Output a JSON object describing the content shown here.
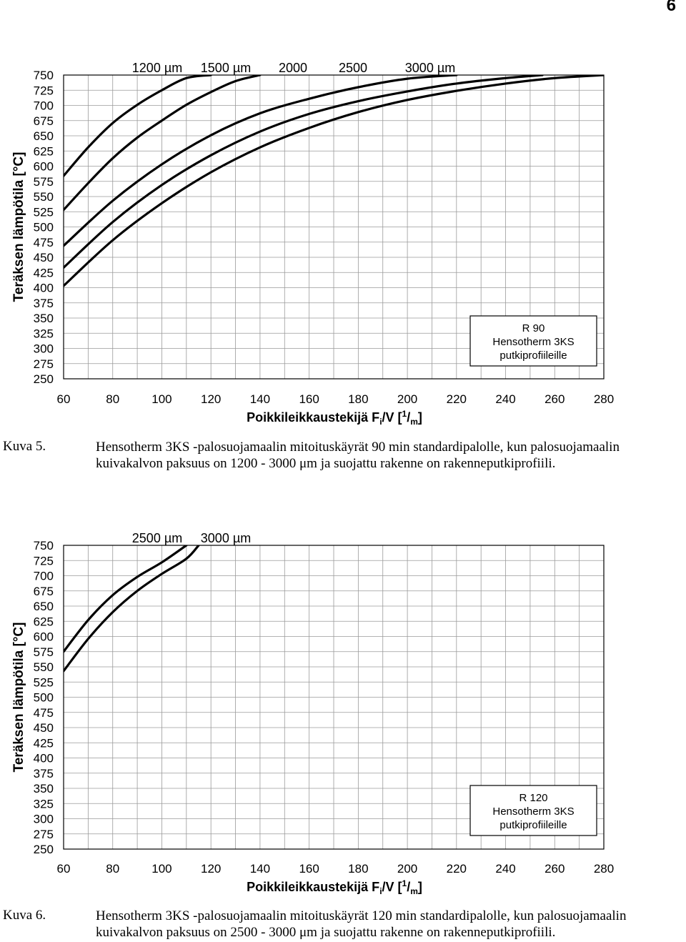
{
  "page_number": "6",
  "figures": [
    {
      "label": "Kuva 5.",
      "caption": "Hensotherm 3KS -palosuojamaalin mitoituskäyrät 90 min standardipalolle, kun palosuojamaalin kuivakalvon paksuus on 1200 - 3000 μm ja suojattu rakenne on rakenneputkiprofiili."
    },
    {
      "label": "Kuva 6.",
      "caption": "Hensotherm 3KS -palosuojamaalin mitoituskäyrät 120 min standardipalolle, kun palosuojamaalin kuivakalvon paksuus on 2500 - 3000 μm ja suojattu rakenne on rakenneputkiprofiili."
    }
  ],
  "chart_data": [
    {
      "type": "line",
      "xlabel": "Poikkileikkaustekijä Fi/V [1/m]",
      "ylabel": "Teräksen lämpötila [°C]",
      "xlim": [
        60,
        280
      ],
      "ylim": [
        250,
        750
      ],
      "xticks": [
        60,
        80,
        100,
        120,
        140,
        160,
        180,
        200,
        220,
        240,
        260,
        280
      ],
      "yticks": [
        250,
        275,
        300,
        325,
        350,
        375,
        400,
        425,
        450,
        475,
        500,
        525,
        550,
        575,
        600,
        625,
        650,
        675,
        700,
        725,
        750
      ],
      "grid": true,
      "legend_box": [
        "R 90",
        "Hensotherm 3KS",
        "putkiprofiileille"
      ],
      "series": [
        {
          "name": "1200 µm",
          "x": [
            60,
            70,
            80,
            90,
            100,
            110,
            120
          ],
          "y": [
            584,
            631,
            671,
            701,
            725,
            745,
            750
          ]
        },
        {
          "name": "1500 µm",
          "x": [
            60,
            70,
            80,
            90,
            100,
            110,
            120,
            130,
            140
          ],
          "y": [
            528,
            572,
            613,
            647,
            675,
            701,
            722,
            740,
            750
          ]
        },
        {
          "name": "2000",
          "x": [
            60,
            80,
            100,
            120,
            140,
            160,
            180,
            200,
            220
          ],
          "y": [
            469,
            543,
            603,
            651,
            687,
            711,
            730,
            744,
            750
          ]
        },
        {
          "name": "2500",
          "x": [
            60,
            80,
            100,
            120,
            140,
            160,
            180,
            200,
            220,
            240,
            255
          ],
          "y": [
            433,
            508,
            569,
            618,
            657,
            686,
            707,
            723,
            736,
            745,
            750
          ]
        },
        {
          "name": "3000 µm",
          "x": [
            60,
            80,
            100,
            120,
            140,
            160,
            180,
            200,
            220,
            240,
            260,
            280
          ],
          "y": [
            403,
            478,
            539,
            590,
            631,
            663,
            689,
            709,
            724,
            736,
            745,
            750
          ]
        }
      ]
    },
    {
      "type": "line",
      "xlabel": "Poikkileikkaustekijä Fi/V [1/m]",
      "ylabel": "Teräksen lämpötila [°C]",
      "xlim": [
        60,
        280
      ],
      "ylim": [
        250,
        750
      ],
      "xticks": [
        60,
        80,
        100,
        120,
        140,
        160,
        180,
        200,
        220,
        240,
        260,
        280
      ],
      "yticks": [
        250,
        275,
        300,
        325,
        350,
        375,
        400,
        425,
        450,
        475,
        500,
        525,
        550,
        575,
        600,
        625,
        650,
        675,
        700,
        725,
        750
      ],
      "grid": true,
      "legend_box": [
        "R 120",
        "Hensotherm 3KS",
        "putkiprofiileille"
      ],
      "series": [
        {
          "name": "2500 µm",
          "x": [
            60,
            70,
            80,
            90,
            100,
            110
          ],
          "y": [
            575,
            627,
            668,
            698,
            722,
            750
          ]
        },
        {
          "name": "3000 µm",
          "x": [
            60,
            70,
            80,
            90,
            100,
            110,
            115
          ],
          "y": [
            543,
            596,
            640,
            675,
            703,
            728,
            750
          ]
        }
      ]
    }
  ]
}
